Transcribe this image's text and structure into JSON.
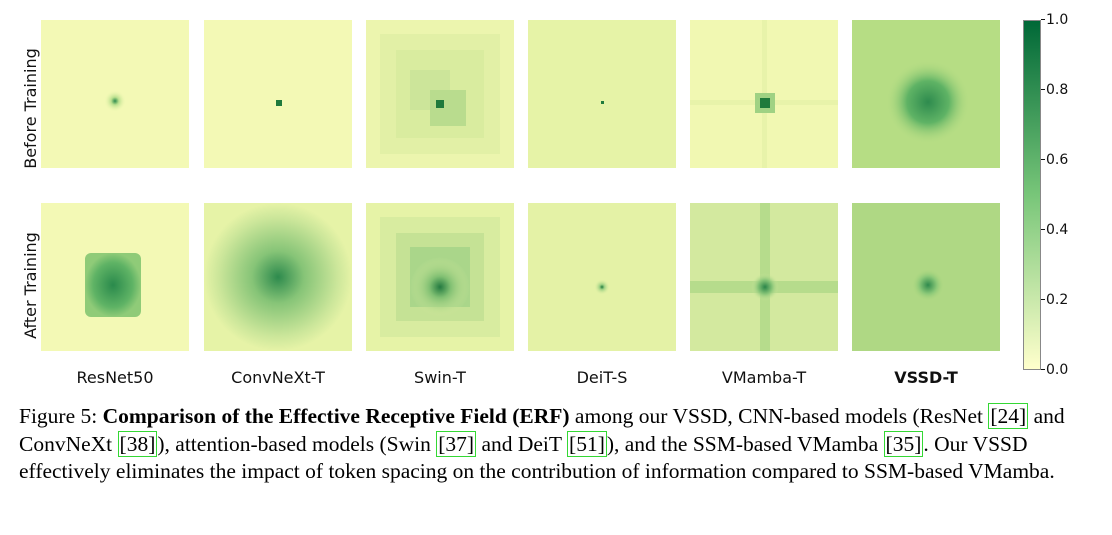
{
  "figure": {
    "row_labels": [
      "Before Training",
      "After Training"
    ],
    "models": [
      {
        "name": "ResNet50",
        "bold": false
      },
      {
        "name": "ConvNeXt-T",
        "bold": false
      },
      {
        "name": "Swin-T",
        "bold": false
      },
      {
        "name": "DeiT-S",
        "bold": false
      },
      {
        "name": "VMamba-T",
        "bold": false
      },
      {
        "name": "VSSD-T",
        "bold": true
      }
    ],
    "colorbar": {
      "ticks": [
        "1.0",
        "0.8",
        "0.6",
        "0.4",
        "0.2",
        "0.0"
      ],
      "min": 0.0,
      "max": 1.0,
      "color_low": "#ffffcc",
      "color_mid": "#78c679",
      "color_high": "#006837"
    }
  },
  "caption": {
    "figure_label": "Figure 5:",
    "bold_title": "Comparison of the Effective Receptive Field (ERF)",
    "text_1": " among our VSSD, CNN-based models (ResNet ",
    "ref_resnet": "[24]",
    "text_2": " and ConvNeXt ",
    "ref_convnext": "[38]",
    "text_3": "), attention-based models (Swin ",
    "ref_swin": "[37]",
    "text_4": " and DeiT ",
    "ref_deit": "[51]",
    "text_5": "), and the SSM-based VMamba ",
    "ref_vmamba": "[35]",
    "text_6": ". Our VSSD effectively eliminates the impact of token spacing on the contribution of information compared to SSM-based VMamba."
  }
}
